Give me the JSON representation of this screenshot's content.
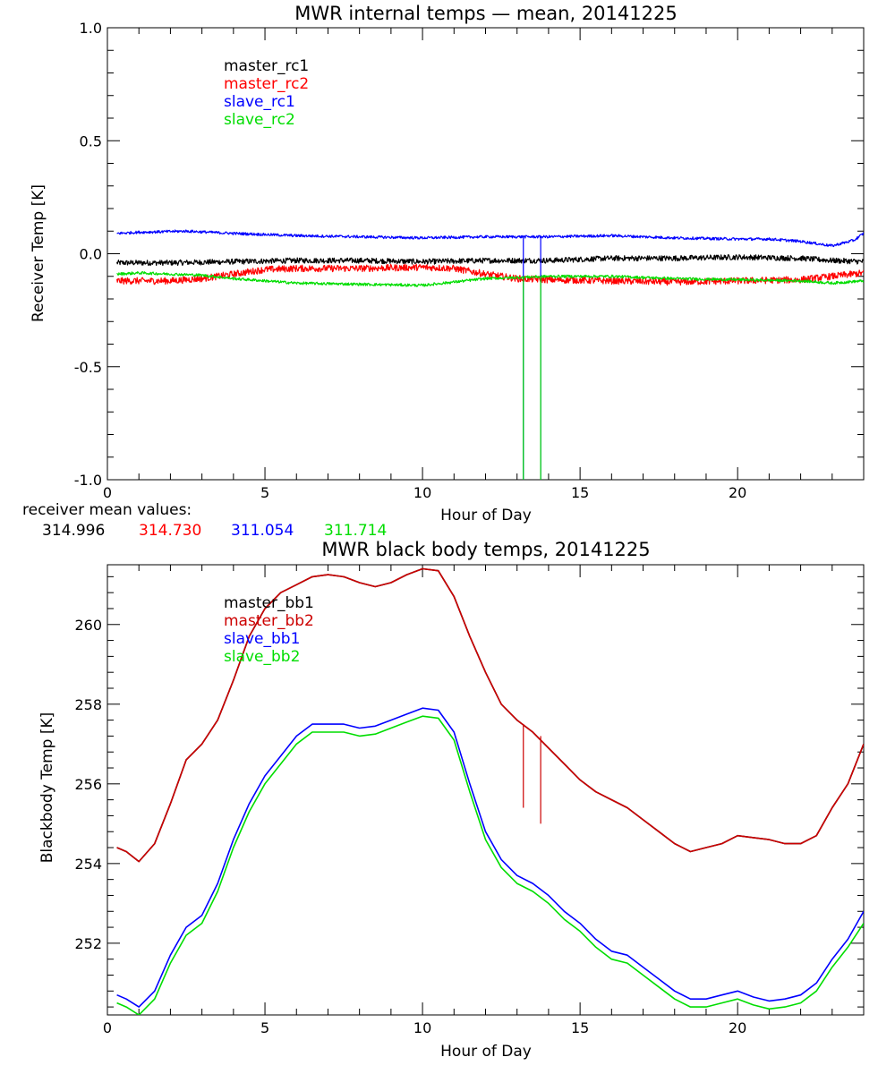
{
  "colors": {
    "master_1": "#000000",
    "master_2": "#ff0000",
    "slave_1": "#0000ff",
    "slave_2": "#00dd00",
    "bb_master": "#cc0000"
  },
  "chart_data": [
    {
      "type": "line",
      "title": "MWR internal temps — mean, 20141225",
      "xlabel": "Hour of Day",
      "ylabel": "Receiver Temp [K]",
      "xlim": [
        0,
        24
      ],
      "ylim": [
        -1.0,
        1.0
      ],
      "xticks": [
        0,
        5,
        10,
        15,
        20
      ],
      "xtick_labels": [
        "0",
        "5",
        "10",
        "15",
        "20"
      ],
      "yticks": [
        -1.0,
        -0.5,
        0.0,
        0.5,
        1.0
      ],
      "ytick_labels": [
        "-1.0",
        "-0.5",
        "0.0",
        "0.5",
        "1.0"
      ],
      "legend": [
        "master_rc1",
        "master_rc2",
        "slave_rc1",
        "slave_rc2"
      ],
      "series": [
        {
          "name": "master_rc1",
          "color_key": "master_1",
          "noise": 0.012,
          "x": [
            0.3,
            2,
            4,
            6,
            8,
            10,
            12,
            14,
            16,
            18,
            20,
            22,
            23,
            24
          ],
          "y": [
            -0.04,
            -0.04,
            -0.035,
            -0.03,
            -0.03,
            -0.035,
            -0.03,
            -0.03,
            -0.02,
            -0.02,
            -0.015,
            -0.02,
            -0.03,
            -0.035
          ]
        },
        {
          "name": "master_rc2",
          "color_key": "master_2",
          "noise": 0.015,
          "x": [
            0.3,
            2,
            3,
            4,
            5,
            6,
            8,
            10,
            11,
            12,
            13,
            14,
            16,
            18,
            20,
            22,
            23,
            24
          ],
          "y": [
            -0.12,
            -0.12,
            -0.11,
            -0.09,
            -0.07,
            -0.065,
            -0.065,
            -0.06,
            -0.065,
            -0.09,
            -0.11,
            -0.115,
            -0.12,
            -0.125,
            -0.12,
            -0.115,
            -0.1,
            -0.085
          ]
        },
        {
          "name": "slave_rc1",
          "color_key": "slave_1",
          "noise": 0.006,
          "x": [
            0.3,
            1,
            2.5,
            4,
            6,
            8,
            10,
            12,
            14,
            16,
            18,
            20,
            21,
            22,
            23,
            23.7,
            24
          ],
          "y": [
            0.09,
            0.095,
            0.1,
            0.09,
            0.08,
            0.075,
            0.07,
            0.075,
            0.075,
            0.08,
            0.07,
            0.065,
            0.065,
            0.055,
            0.035,
            0.06,
            0.09
          ]
        },
        {
          "name": "slave_rc2",
          "color_key": "slave_2",
          "noise": 0.006,
          "x": [
            0.3,
            1,
            3,
            4,
            6,
            8,
            10,
            12,
            14,
            16,
            18,
            20,
            22,
            23,
            24
          ],
          "y": [
            -0.09,
            -0.085,
            -0.095,
            -0.11,
            -0.13,
            -0.135,
            -0.14,
            -0.11,
            -0.1,
            -0.1,
            -0.11,
            -0.115,
            -0.12,
            -0.13,
            -0.12
          ]
        }
      ],
      "spikes": [
        {
          "series": "slave_rc1",
          "x": 13.2,
          "from": 0.08,
          "to": -1.0,
          "color_key": "slave_1"
        },
        {
          "series": "slave_rc1",
          "x": 13.75,
          "from": 0.08,
          "to": -1.0,
          "color_key": "slave_1"
        },
        {
          "series": "slave_rc2",
          "x": 13.2,
          "from": -0.1,
          "to": -1.0,
          "color_key": "slave_2"
        },
        {
          "series": "slave_rc2",
          "x": 13.75,
          "from": -0.1,
          "to": -1.0,
          "color_key": "slave_2"
        }
      ]
    },
    {
      "type": "line",
      "title": "MWR black body temps, 20141225",
      "xlabel": "Hour of Day",
      "ylabel": "Blackbody Temp [K]",
      "xlim": [
        0,
        24
      ],
      "ylim": [
        250.2,
        261.5
      ],
      "xticks": [
        0,
        5,
        10,
        15,
        20
      ],
      "xtick_labels": [
        "0",
        "5",
        "10",
        "15",
        "20"
      ],
      "yticks": [
        252,
        254,
        256,
        258,
        260
      ],
      "ytick_labels": [
        "252",
        "254",
        "256",
        "258",
        "260"
      ],
      "legend": [
        "master_bb1",
        "master_bb2",
        "slave_bb1",
        "slave_bb2"
      ],
      "series": [
        {
          "name": "master_bb1",
          "color_key": "master_1",
          "x": [
            0.3,
            0.6,
            1,
            1.5,
            2,
            2.5,
            3,
            3.5,
            4,
            4.5,
            5,
            5.5,
            6,
            6.5,
            7,
            7.5,
            8,
            8.5,
            9,
            9.5,
            10,
            10.5,
            11,
            11.5,
            12,
            12.5,
            13,
            13.5,
            14,
            14.5,
            15,
            15.5,
            16,
            16.5,
            17,
            17.5,
            18,
            18.5,
            19,
            19.5,
            20,
            20.5,
            21,
            21.5,
            22,
            22.5,
            23,
            23.5,
            24
          ],
          "y": [
            254.4,
            254.3,
            254.05,
            254.5,
            255.5,
            256.6,
            257.0,
            257.6,
            258.6,
            259.7,
            260.4,
            260.8,
            261.0,
            261.2,
            261.25,
            261.2,
            261.05,
            260.95,
            261.05,
            261.25,
            261.4,
            261.35,
            260.7,
            259.7,
            258.8,
            258.0,
            257.6,
            257.3,
            256.9,
            256.5,
            256.1,
            255.8,
            255.6,
            255.4,
            255.1,
            254.8,
            254.5,
            254.3,
            254.4,
            254.5,
            254.7,
            254.65,
            254.6,
            254.5,
            254.5,
            254.7,
            255.4,
            256.0,
            257.0
          ]
        },
        {
          "name": "master_bb2",
          "color_key": "bb_master",
          "x": [
            0.3,
            0.6,
            1,
            1.5,
            2,
            2.5,
            3,
            3.5,
            4,
            4.5,
            5,
            5.5,
            6,
            6.5,
            7,
            7.5,
            8,
            8.5,
            9,
            9.5,
            10,
            10.5,
            11,
            11.5,
            12,
            12.5,
            13,
            13.5,
            14,
            14.5,
            15,
            15.5,
            16,
            16.5,
            17,
            17.5,
            18,
            18.5,
            19,
            19.5,
            20,
            20.5,
            21,
            21.5,
            22,
            22.5,
            23,
            23.5,
            24
          ],
          "y": [
            254.4,
            254.3,
            254.05,
            254.5,
            255.5,
            256.6,
            257.0,
            257.6,
            258.6,
            259.7,
            260.4,
            260.8,
            261.0,
            261.2,
            261.25,
            261.2,
            261.05,
            260.95,
            261.05,
            261.25,
            261.4,
            261.35,
            260.7,
            259.7,
            258.8,
            258.0,
            257.6,
            257.3,
            256.9,
            256.5,
            256.1,
            255.8,
            255.6,
            255.4,
            255.1,
            254.8,
            254.5,
            254.3,
            254.4,
            254.5,
            254.7,
            254.65,
            254.6,
            254.5,
            254.5,
            254.7,
            255.4,
            256.0,
            257.0
          ]
        },
        {
          "name": "slave_bb1",
          "color_key": "slave_1",
          "x": [
            0.3,
            0.6,
            1,
            1.5,
            2,
            2.5,
            3,
            3.5,
            4,
            4.5,
            5,
            5.5,
            6,
            6.5,
            7,
            7.5,
            8,
            8.5,
            9,
            9.5,
            10,
            10.5,
            11,
            11.5,
            12,
            12.5,
            13,
            13.5,
            14,
            14.5,
            15,
            15.5,
            16,
            16.5,
            17,
            17.5,
            18,
            18.5,
            19,
            19.5,
            20,
            20.5,
            21,
            21.5,
            22,
            22.5,
            23,
            23.5,
            24
          ],
          "y": [
            250.7,
            250.6,
            250.4,
            250.8,
            251.7,
            252.4,
            252.7,
            253.5,
            254.6,
            255.5,
            256.2,
            256.7,
            257.2,
            257.5,
            257.5,
            257.5,
            257.4,
            257.45,
            257.6,
            257.75,
            257.9,
            257.85,
            257.3,
            256.0,
            254.8,
            254.1,
            253.7,
            253.5,
            253.2,
            252.8,
            252.5,
            252.1,
            251.8,
            251.7,
            251.4,
            251.1,
            250.8,
            250.6,
            250.6,
            250.7,
            250.8,
            250.65,
            250.55,
            250.6,
            250.7,
            251.0,
            251.6,
            252.1,
            252.8
          ]
        },
        {
          "name": "slave_bb2",
          "color_key": "slave_2",
          "x": [
            0.3,
            0.6,
            1,
            1.5,
            2,
            2.5,
            3,
            3.5,
            4,
            4.5,
            5,
            5.5,
            6,
            6.5,
            7,
            7.5,
            8,
            8.5,
            9,
            9.5,
            10,
            10.5,
            11,
            11.5,
            12,
            12.5,
            13,
            13.5,
            14,
            14.5,
            15,
            15.5,
            16,
            16.5,
            17,
            17.5,
            18,
            18.5,
            19,
            19.5,
            20,
            20.5,
            21,
            21.5,
            22,
            22.5,
            23,
            23.5,
            24
          ],
          "y": [
            250.5,
            250.4,
            250.2,
            250.6,
            251.5,
            252.2,
            252.5,
            253.3,
            254.4,
            255.3,
            256.0,
            256.5,
            257.0,
            257.3,
            257.3,
            257.3,
            257.2,
            257.25,
            257.4,
            257.55,
            257.7,
            257.65,
            257.1,
            255.8,
            254.6,
            253.9,
            253.5,
            253.3,
            253.0,
            252.6,
            252.3,
            251.9,
            251.6,
            251.5,
            251.2,
            250.9,
            250.6,
            250.4,
            250.4,
            250.5,
            250.6,
            250.45,
            250.35,
            250.4,
            250.5,
            250.8,
            251.4,
            251.9,
            252.5
          ]
        }
      ],
      "spikes": [
        {
          "series": "master_bb2",
          "x": 13.2,
          "from": 257.5,
          "to": 255.4,
          "color_key": "bb_master"
        },
        {
          "series": "master_bb2",
          "x": 13.75,
          "from": 257.2,
          "to": 255.0,
          "color_key": "bb_master"
        }
      ]
    }
  ],
  "receiver_mean": {
    "label": "receiver mean values:",
    "values": [
      {
        "text": "314.996",
        "color_key": "master_1"
      },
      {
        "text": "314.730",
        "color_key": "master_2"
      },
      {
        "text": "311.054",
        "color_key": "slave_1"
      },
      {
        "text": "311.714",
        "color_key": "slave_2"
      }
    ]
  }
}
